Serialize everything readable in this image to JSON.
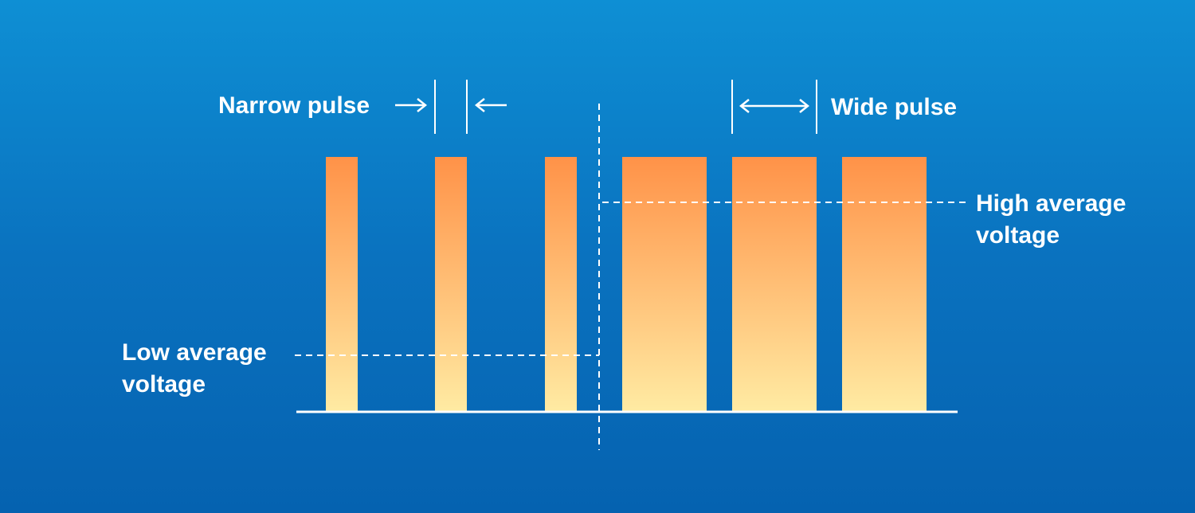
{
  "diagram": {
    "narrow_pulse_label": "Narrow pulse",
    "wide_pulse_label": "Wide pulse",
    "high_average_label": [
      "High average",
      "voltage"
    ],
    "low_average_label": [
      "Low average",
      "voltage"
    ]
  },
  "colors": {
    "background_top": "#0e8fd4",
    "background_bottom": "#0562b0",
    "pulse_top": "#ff9248",
    "pulse_bottom": "#ffeba3",
    "line": "#ffffff"
  }
}
